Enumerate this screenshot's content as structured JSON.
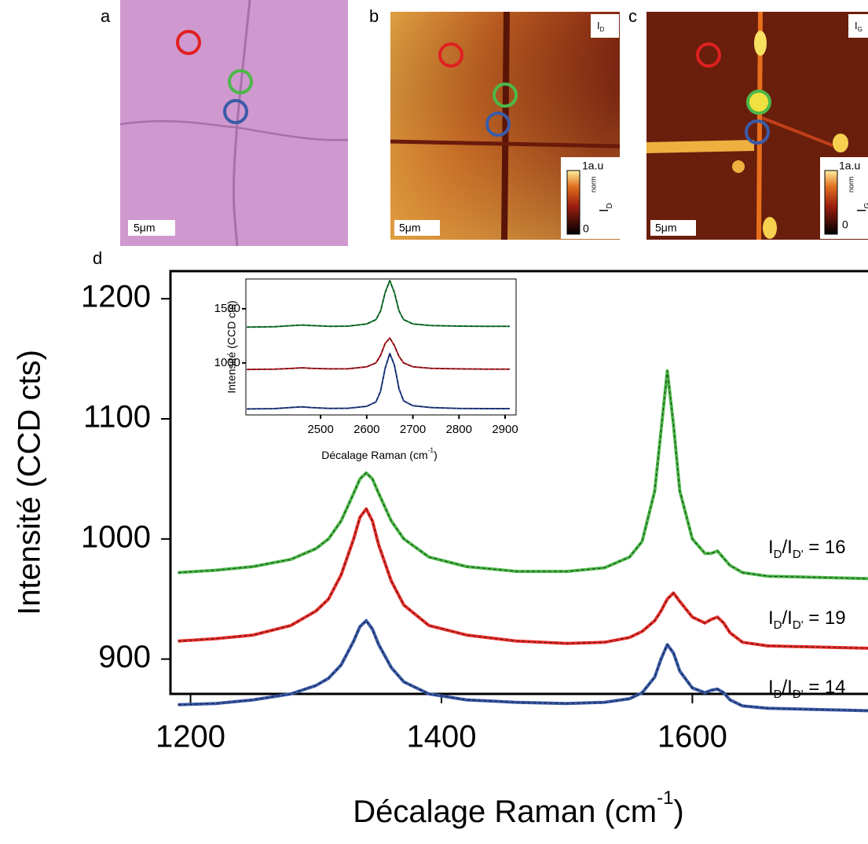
{
  "panels": {
    "a": {
      "label": "a",
      "scale": "5μm"
    },
    "b": {
      "label": "b",
      "scale": "5μm",
      "map": "I",
      "map_sub": "D",
      "cb_max": "1a.u",
      "cb_min": "0",
      "cb_title": "I",
      "cb_sup": "norm",
      "cb_sub": "D"
    },
    "c": {
      "label": "c",
      "scale": "5μm",
      "map": "I",
      "map_sub": "G",
      "cb_max": "1a.u",
      "cb_min": "0",
      "cb_title": "I",
      "cb_sup": "norm",
      "cb_sub": "G"
    },
    "d": {
      "label": "d"
    }
  },
  "chart_data": [
    {
      "type": "line",
      "y_label": "Intensité (CCD cts)",
      "x_label": "Décalage Raman (cm",
      "x_label_sup": "-1",
      "x_label_end": ")",
      "xlim": [
        1184,
        1740
      ],
      "xticks": [
        1200,
        1400,
        1600
      ],
      "ylim": [
        871,
        1223
      ],
      "yticks": [
        900,
        1000,
        1100,
        1200
      ],
      "x": [
        1190,
        1220,
        1250,
        1280,
        1300,
        1310,
        1320,
        1330,
        1335,
        1340,
        1345,
        1350,
        1360,
        1370,
        1390,
        1420,
        1460,
        1500,
        1530,
        1550,
        1560,
        1570,
        1575,
        1580,
        1585,
        1590,
        1600,
        1610,
        1615,
        1620,
        1625,
        1630,
        1640,
        1660,
        1700,
        1740
      ],
      "series": [
        {
          "color": "#4cb848",
          "values": [
            972,
            974,
            977,
            983,
            992,
            1000,
            1015,
            1038,
            1050,
            1055,
            1050,
            1038,
            1015,
            1000,
            985,
            977,
            973,
            973,
            976,
            985,
            998,
            1040,
            1090,
            1140,
            1095,
            1040,
            1000,
            988,
            988,
            990,
            984,
            978,
            972,
            969,
            968,
            967
          ]
        },
        {
          "color": "#e8302c",
          "values": [
            915,
            917,
            920,
            928,
            940,
            950,
            970,
            1000,
            1018,
            1025,
            1015,
            995,
            965,
            945,
            928,
            920,
            915,
            913,
            914,
            918,
            923,
            932,
            940,
            950,
            955,
            948,
            935,
            930,
            933,
            935,
            930,
            922,
            914,
            911,
            910,
            909
          ]
        },
        {
          "color": "#3a5ba8",
          "values": [
            862,
            863,
            866,
            871,
            878,
            884,
            895,
            915,
            927,
            932,
            925,
            912,
            893,
            881,
            871,
            866,
            864,
            863,
            864,
            867,
            872,
            885,
            900,
            912,
            905,
            890,
            876,
            872,
            874,
            875,
            872,
            866,
            861,
            859,
            858,
            857
          ]
        }
      ],
      "annotations": [
        {
          "i": "I",
          "sub": "D",
          "mid": "/I",
          "sub2": "D'",
          "text": " = 16"
        },
        {
          "i": "I",
          "sub": "D",
          "mid": "/I",
          "sub2": "D'",
          "text": " = 19"
        },
        {
          "i": "I",
          "sub": "D",
          "mid": "/I",
          "sub2": "D'",
          "text": " = 14"
        }
      ]
    },
    {
      "type": "line",
      "y_label": "Intensité (CCD cts)",
      "x_label": "Décalage Raman (cm",
      "x_label_sup": "-1",
      "x_label_end": ")",
      "xlim": [
        2338,
        2917
      ],
      "xticks": [
        2500,
        2600,
        2700,
        2800,
        2900
      ],
      "ylim": [
        520,
        1775
      ],
      "yticks": [
        1000,
        1500
      ],
      "x": [
        2340,
        2400,
        2440,
        2460,
        2480,
        2520,
        2560,
        2600,
        2620,
        2630,
        2640,
        2650,
        2660,
        2670,
        2680,
        2700,
        2740,
        2800,
        2860,
        2910
      ],
      "series": [
        {
          "color": "#1e8a3c",
          "values": [
            1330,
            1335,
            1345,
            1350,
            1345,
            1338,
            1340,
            1360,
            1400,
            1480,
            1650,
            1760,
            1650,
            1480,
            1400,
            1360,
            1345,
            1340,
            1338,
            1338
          ]
        },
        {
          "color": "#c0252a",
          "values": [
            940,
            942,
            950,
            955,
            950,
            945,
            946,
            965,
            1000,
            1070,
            1180,
            1230,
            1160,
            1060,
            1000,
            965,
            950,
            945,
            943,
            942
          ]
        },
        {
          "color": "#2c4a9a",
          "values": [
            575,
            578,
            590,
            595,
            588,
            580,
            582,
            600,
            640,
            740,
            950,
            1087,
            980,
            760,
            650,
            605,
            588,
            580,
            578,
            578
          ]
        }
      ]
    }
  ]
}
